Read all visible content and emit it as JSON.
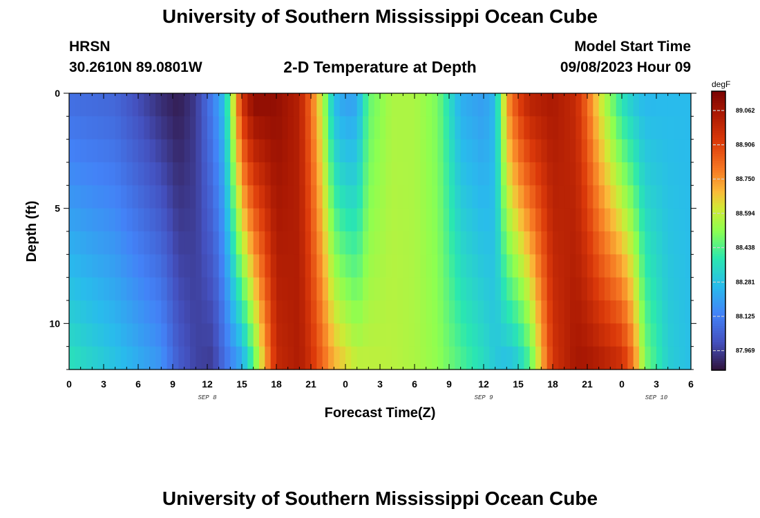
{
  "page": {
    "title_top": "University of Southern Mississippi Ocean Cube",
    "title_bottom": "University of Southern Mississippi Ocean Cube",
    "station_id": "HRSN",
    "station_coords": "30.2610N  89.0801W",
    "chart_title": "2-D Temperature at Depth",
    "model_label": "Model Start Time",
    "model_time": "09/08/2023 Hour 09"
  },
  "chart_data": {
    "type": "heatmap",
    "title": "2-D Temperature at Depth",
    "xlabel": "Forecast Time(Z)",
    "ylabel": "Depth (ft)",
    "units": "degF",
    "x_range": [
      0,
      54
    ],
    "y_range": [
      0,
      12
    ],
    "x_tick_values": [
      0,
      3,
      6,
      9,
      12,
      15,
      18,
      21,
      24,
      27,
      30,
      33,
      36,
      39,
      42,
      45,
      48,
      51,
      54
    ],
    "x_tick_labels": [
      "0",
      "3",
      "6",
      "9",
      "12",
      "15",
      "18",
      "21",
      "0",
      "3",
      "6",
      "9",
      "12",
      "15",
      "18",
      "21",
      "0",
      "3",
      "6"
    ],
    "date_labels": [
      {
        "text": "SEP 8",
        "x": 12
      },
      {
        "text": "SEP 9",
        "x": 36
      },
      {
        "text": "SEP 10",
        "x": 51
      }
    ],
    "y_ticks": [
      0,
      5,
      10
    ],
    "colorbar_ticks": [
      89.062,
      88.906,
      88.75,
      88.594,
      88.438,
      88.281,
      88.125,
      87.969
    ],
    "colorbar_labels": [
      "89.062",
      "88.906",
      "88.750",
      "88.594",
      "88.438",
      "88.281",
      "88.125",
      "87.969"
    ],
    "value_range": [
      87.88,
      89.15
    ],
    "time_step_hours": 0.5,
    "depth_levels": 12,
    "time_control_points": [
      0,
      4,
      8,
      9.5,
      11,
      12.5,
      13.5,
      15,
      16,
      18,
      20,
      21,
      22,
      23,
      24,
      25,
      26,
      28,
      30,
      32,
      34,
      36,
      37,
      38,
      39,
      40,
      42,
      44,
      45,
      46,
      48,
      49,
      50,
      52,
      54
    ],
    "surface_values": [
      88.08,
      88.06,
      87.93,
      87.9,
      87.96,
      88.13,
      88.28,
      88.96,
      89.12,
      89.1,
      89.02,
      88.82,
      88.58,
      88.26,
      88.19,
      88.21,
      88.46,
      88.56,
      88.56,
      88.49,
      88.23,
      88.19,
      88.26,
      88.74,
      88.92,
      89.02,
      89.05,
      88.98,
      88.82,
      88.63,
      88.36,
      88.29,
      88.25,
      88.26,
      88.26
    ],
    "bottom_values": [
      88.38,
      88.29,
      88.18,
      88.04,
      87.98,
      87.96,
      88.08,
      88.2,
      88.42,
      88.98,
      89.04,
      88.96,
      88.84,
      88.72,
      88.66,
      88.6,
      88.59,
      88.58,
      88.56,
      88.52,
      88.44,
      88.36,
      88.3,
      88.26,
      88.3,
      88.42,
      88.94,
      89.06,
      89.06,
      89.04,
      88.98,
      88.82,
      88.5,
      88.32,
      88.27
    ],
    "front_shift_hours_at_bottom": 3.2
  }
}
